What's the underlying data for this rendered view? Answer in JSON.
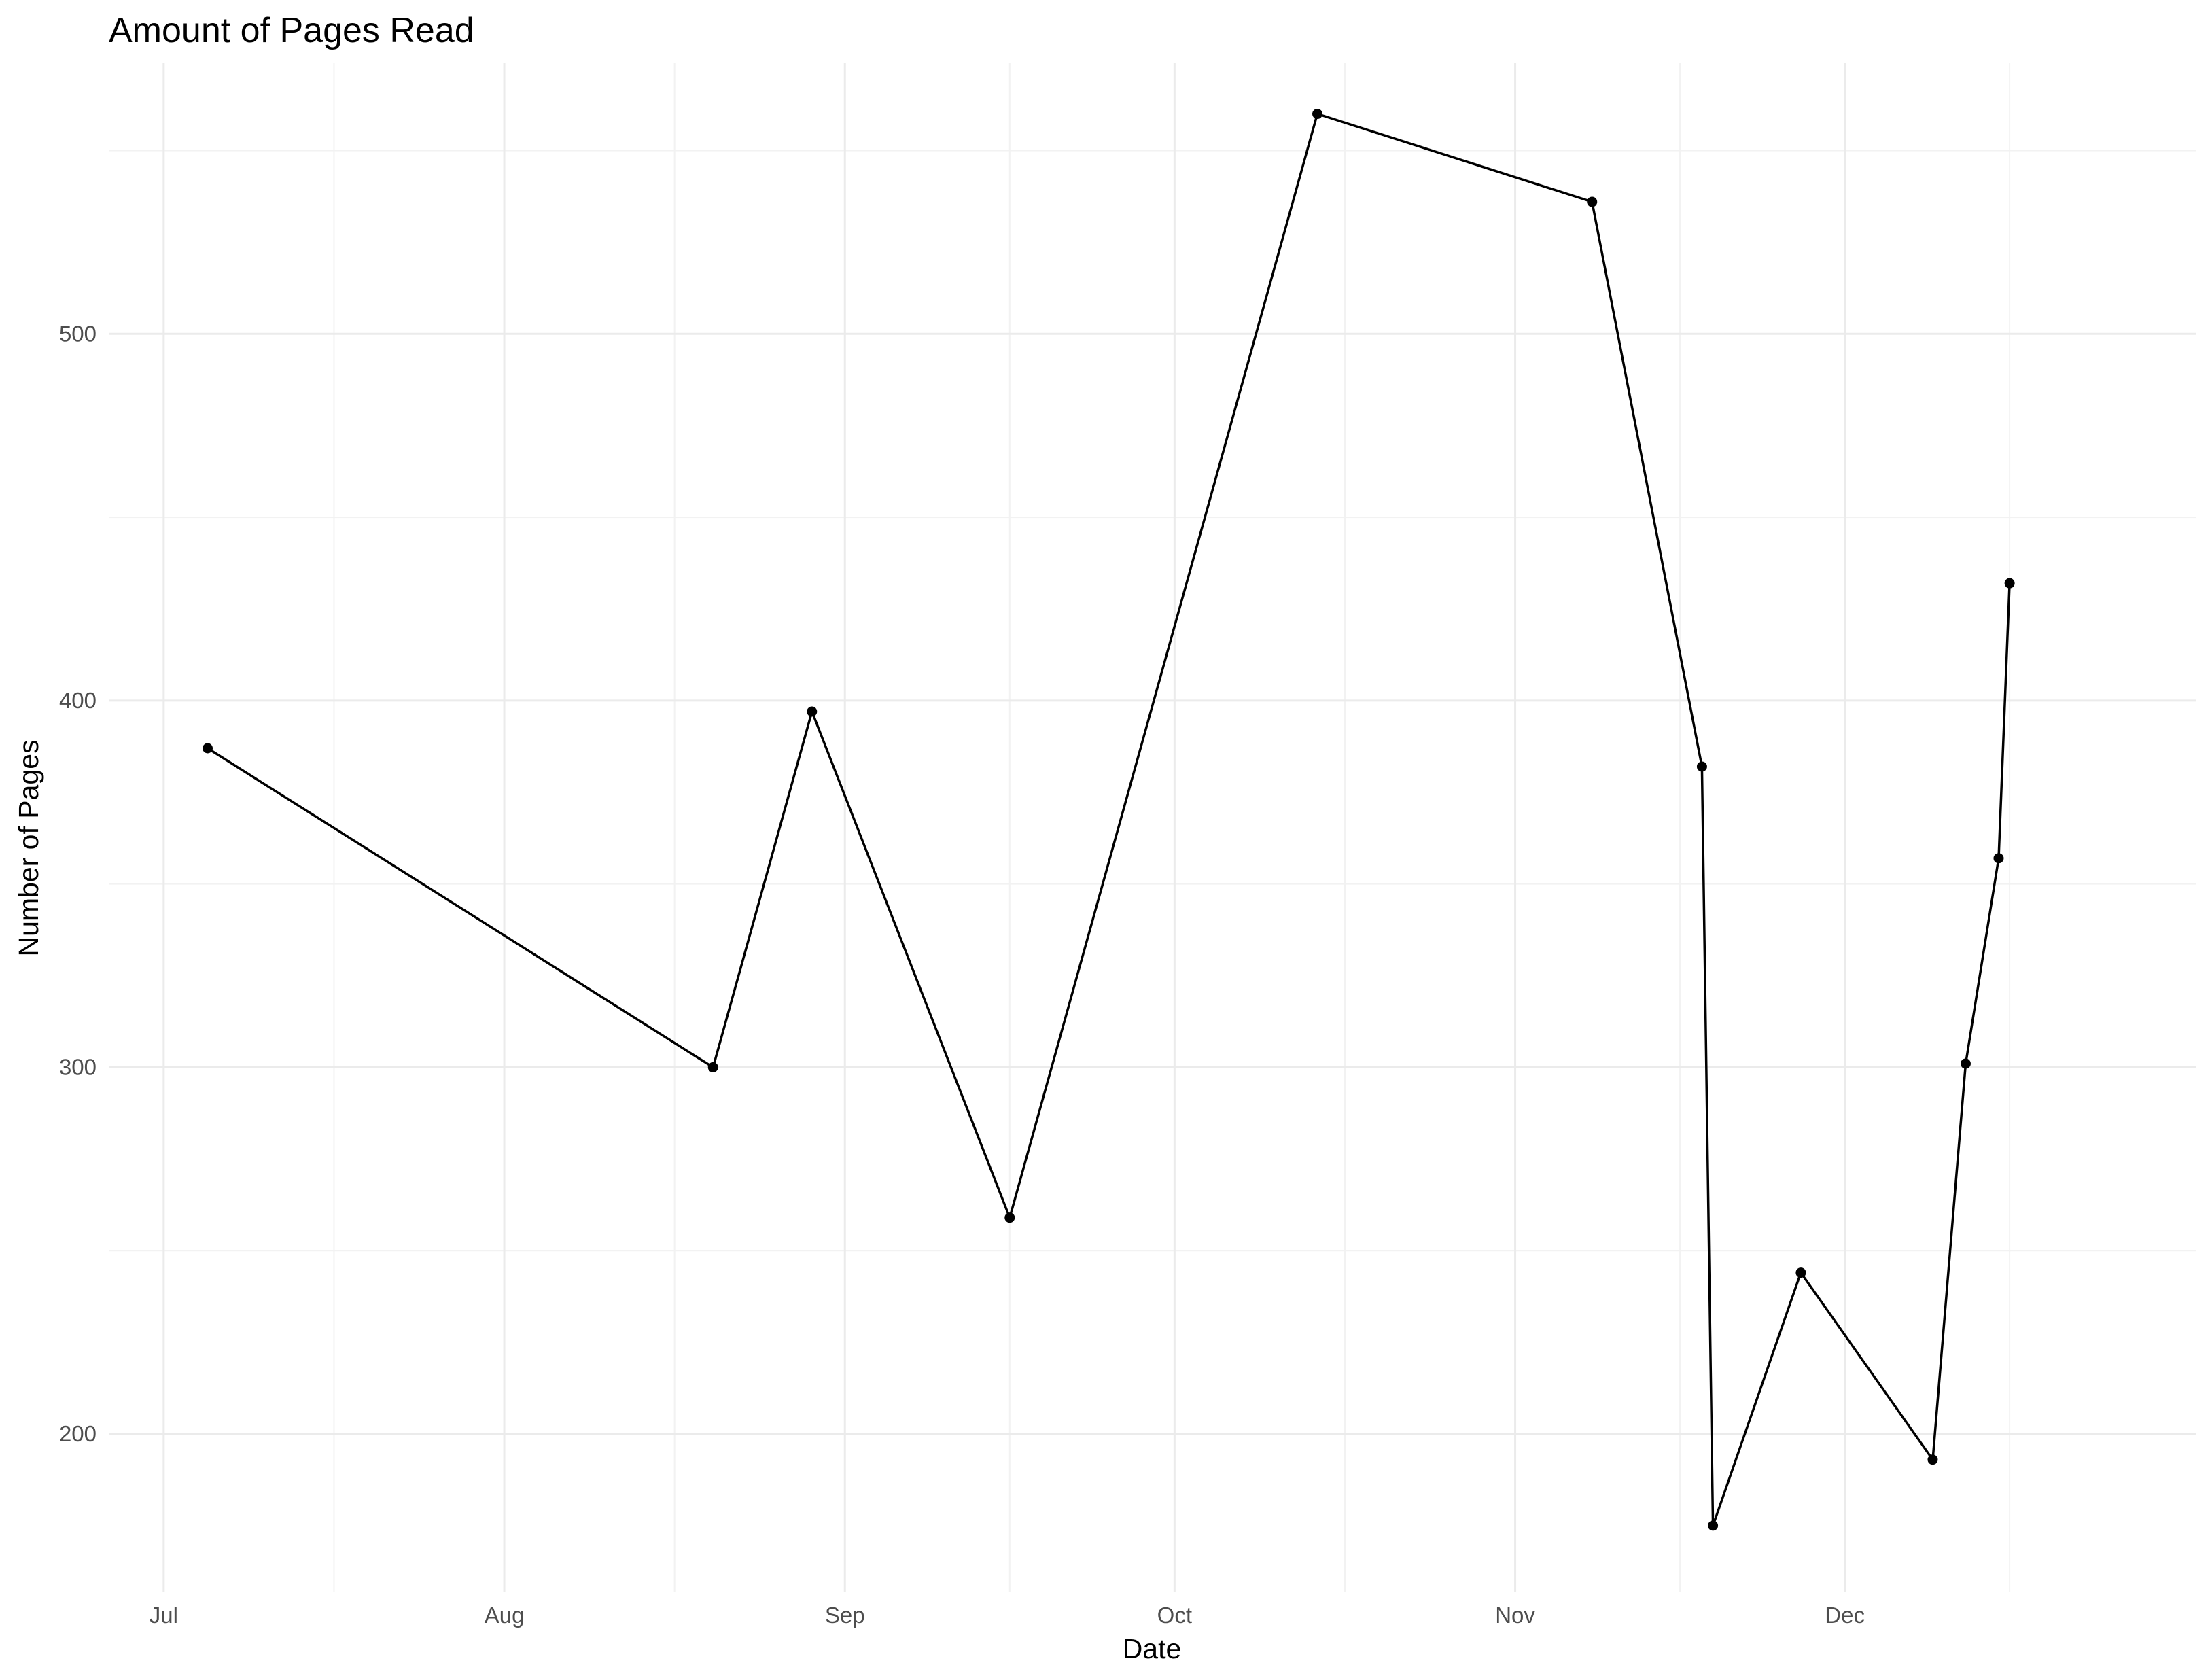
{
  "chart_data": {
    "type": "line",
    "title": "Amount of Pages Read",
    "xlabel": "Date",
    "ylabel": "Number of Pages",
    "x_axis_type": "date",
    "xlim": [
      "2025-06-26",
      "2026-01-02"
    ],
    "ylim": [
      157,
      574
    ],
    "x_ticks": [
      {
        "date": "2025-07-01",
        "label": "Jul"
      },
      {
        "date": "2025-08-01",
        "label": "Aug"
      },
      {
        "date": "2025-09-01",
        "label": "Sep"
      },
      {
        "date": "2025-10-01",
        "label": "Oct"
      },
      {
        "date": "2025-11-01",
        "label": "Nov"
      },
      {
        "date": "2025-12-01",
        "label": "Dec"
      }
    ],
    "y_ticks": [
      200,
      300,
      400,
      500
    ],
    "grid": true,
    "series": [
      {
        "color": "#000000",
        "markers": true,
        "points": [
          {
            "x": "2025-07-05",
            "y": 387
          },
          {
            "x": "2025-08-20",
            "y": 300
          },
          {
            "x": "2025-08-29",
            "y": 397
          },
          {
            "x": "2025-09-16",
            "y": 259
          },
          {
            "x": "2025-10-14",
            "y": 560
          },
          {
            "x": "2025-11-08",
            "y": 536
          },
          {
            "x": "2025-11-18",
            "y": 382
          },
          {
            "x": "2025-11-19",
            "y": 175
          },
          {
            "x": "2025-11-27",
            "y": 244
          },
          {
            "x": "2025-12-09",
            "y": 193
          },
          {
            "x": "2025-12-12",
            "y": 301
          },
          {
            "x": "2025-12-15",
            "y": 357
          },
          {
            "x": "2025-12-16",
            "y": 432
          }
        ]
      }
    ]
  }
}
